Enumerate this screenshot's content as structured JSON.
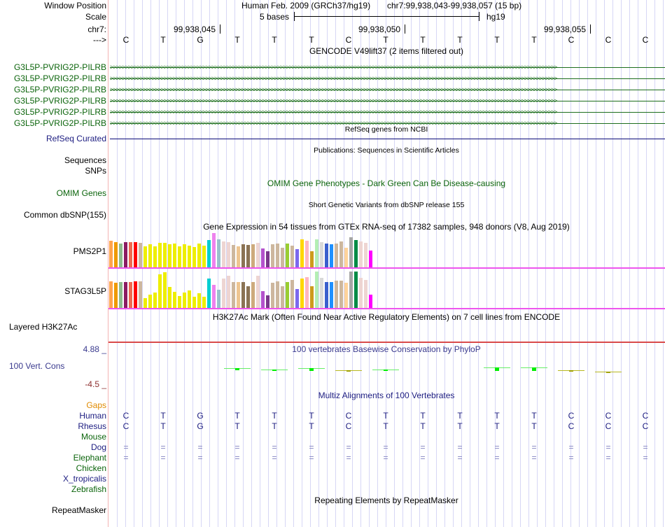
{
  "header": {
    "window_position_label": "Window Position",
    "assembly": "Human Feb. 2009 (GRCh37/hg19)",
    "position": "chr7:99,938,043-99,938,057 (15 bp)",
    "scale_label": "Scale",
    "scale_text": "5 bases",
    "scale_db": "hg19",
    "chrom_label": "chr7:",
    "coords": [
      "99,938,045",
      "99,938,050",
      "99,938,055"
    ],
    "strand_label": "--->",
    "bases": [
      "C",
      "T",
      "G",
      "T",
      "T",
      "T",
      "C",
      "T",
      "T",
      "T",
      "T",
      "T",
      "C",
      "C",
      "C"
    ]
  },
  "tracks": {
    "gencode": {
      "title": "GENCODE V49lift37 (2 items filtered out)",
      "items": [
        "G3L5P-PVRIG2P-PILRB",
        "G3L5P-PVRIG2P-PILRB",
        "G3L5P-PVRIG2P-PILRB",
        "G3L5P-PVRIG2P-PILRB",
        "G3L5P-PVRIG2P-PILRB",
        "G3L5P-PVRIG2P-PILRB"
      ],
      "color": "#0b640b"
    },
    "refseq": {
      "label": "RefSeq Curated",
      "title": "RefSeq genes from NCBI",
      "color": "#0c0c78"
    },
    "publications": {
      "title": "Publications: Sequences in Scientific Articles",
      "labels": [
        "Sequences",
        "SNPs"
      ]
    },
    "omim": {
      "label": "OMIM Genes",
      "title": "OMIM Gene Phenotypes - Dark Green Can Be Disease-causing"
    },
    "dbsnp": {
      "label": "Common dbSNP(155)",
      "title": "Short Genetic Variants from dbSNP release 155"
    },
    "gtex": {
      "title": "Gene Expression in 54 tissues from GTEx RNA-seq of 17382 samples, 948 donors (V8, Aug 2019)",
      "colors": [
        "#FFA54F",
        "#EE9A00",
        "#8FBC8F",
        "#8B1C62",
        "#EE6A50",
        "#FF0000",
        "#CDB79E",
        "#EEEE00",
        "#EEEE00",
        "#EEEE00",
        "#EEEE00",
        "#EEEE00",
        "#EEEE00",
        "#EEEE00",
        "#EEEE00",
        "#EEEE00",
        "#EEEE00",
        "#EEEE00",
        "#EEEE00",
        "#EEEE00",
        "#00CED1",
        "#EE82EE",
        "#9AC0CD",
        "#EED5D2",
        "#EED5D2",
        "#CDB79E",
        "#EEC591",
        "#8B7355",
        "#8B7355",
        "#CDAA7D",
        "#EED5D2",
        "#B452CD",
        "#7A378B",
        "#CDB79E",
        "#CDB79E",
        "#CDB79E",
        "#9ACD32",
        "#CDB79E",
        "#7B68EE",
        "#FFD700",
        "#FFB6C1",
        "#CD9B1D",
        "#B4EEB4",
        "#D9D9D9",
        "#3A5FCD",
        "#1E90FF",
        "#CDB79E",
        "#CDB79E",
        "#FFD39B",
        "#A6A6A6",
        "#008B45",
        "#EED5D2",
        "#EED5D2",
        "#FF00FF"
      ],
      "genes": [
        {
          "name": "PMS2P1",
          "values": [
            0.78,
            0.74,
            0.7,
            0.74,
            0.74,
            0.74,
            0.72,
            0.62,
            0.68,
            0.62,
            0.72,
            0.72,
            0.68,
            0.7,
            0.62,
            0.68,
            0.64,
            0.6,
            0.7,
            0.64,
            0.8,
            1.0,
            0.82,
            0.76,
            0.74,
            0.66,
            0.62,
            0.68,
            0.66,
            0.68,
            0.72,
            0.56,
            0.46,
            0.68,
            0.7,
            0.58,
            0.7,
            0.64,
            0.54,
            0.82,
            0.78,
            0.46,
            0.82,
            0.74,
            0.7,
            0.68,
            0.7,
            0.76,
            0.58,
            0.88,
            0.8,
            0.76,
            0.72,
            0.48
          ]
        },
        {
          "name": "STAG3L5P",
          "values": [
            0.7,
            0.66,
            0.68,
            0.68,
            0.68,
            0.7,
            0.7,
            0.26,
            0.36,
            0.4,
            0.88,
            0.94,
            0.56,
            0.42,
            0.32,
            0.4,
            0.46,
            0.3,
            0.38,
            0.3,
            0.78,
            0.62,
            0.48,
            0.78,
            0.86,
            0.68,
            0.68,
            0.68,
            0.58,
            0.68,
            0.86,
            0.44,
            0.34,
            0.66,
            0.7,
            0.58,
            0.68,
            0.74,
            0.5,
            0.78,
            0.82,
            0.58,
            0.96,
            0.8,
            0.68,
            0.68,
            0.72,
            0.72,
            0.66,
            0.96,
            0.96,
            0.8,
            0.74,
            0.36
          ]
        }
      ],
      "underline_color": "#EE55EE"
    },
    "h3k27ac": {
      "label": "Layered H3K27Ac",
      "title": "H3K27Ac Mark (Often Found Near Active Regulatory Elements) on 7 cell lines from ENCODE"
    },
    "phylop": {
      "label": "100 Vert. Cons",
      "title": "100 vertebrates Basewise Conservation by PhyloP",
      "max_label": "4.88 _",
      "min_label": "-4.5 _",
      "values": [
        null,
        null,
        null,
        0.35,
        0.18,
        0.42,
        -0.02,
        0.12,
        null,
        null,
        0.55,
        0.5,
        -0.02,
        -0.25,
        null
      ]
    },
    "multiz": {
      "title": "Multiz Alignments of 100 Vertebrates",
      "gaps_label": "Gaps",
      "species": [
        {
          "name": "Human",
          "color": "#1c1c80",
          "row": [
            "C",
            "T",
            "G",
            "T",
            "T",
            "T",
            "C",
            "T",
            "T",
            "T",
            "T",
            "T",
            "C",
            "C",
            "C"
          ]
        },
        {
          "name": "Rhesus",
          "color": "#1c1c80",
          "row": [
            "C",
            "T",
            "G",
            "T",
            "T",
            "T",
            "C",
            "T",
            "T",
            "T",
            "T",
            "T",
            "C",
            "C",
            "C"
          ]
        },
        {
          "name": "Mouse",
          "color": "#0b640b",
          "row": []
        },
        {
          "name": "Dog",
          "color": "#1c1c80",
          "row": [
            "=",
            "=",
            "=",
            "=",
            "=",
            "=",
            "=",
            "=",
            "=",
            "=",
            "=",
            "=",
            "=",
            "=",
            "="
          ]
        },
        {
          "name": "Elephant",
          "color": "#0b640b",
          "row": [
            "=",
            "=",
            "=",
            "=",
            "=",
            "=",
            "=",
            "=",
            "=",
            "=",
            "=",
            "=",
            "=",
            "=",
            "="
          ]
        },
        {
          "name": "Chicken",
          "color": "#0b640b",
          "row": []
        },
        {
          "name": "X_tropicalis",
          "color": "#1c1c80",
          "row": []
        },
        {
          "name": "Zebrafish",
          "color": "#0b640b",
          "row": []
        }
      ]
    },
    "repeatmasker": {
      "label": "RepeatMasker",
      "title": "Repeating Elements by RepeatMasker"
    }
  }
}
